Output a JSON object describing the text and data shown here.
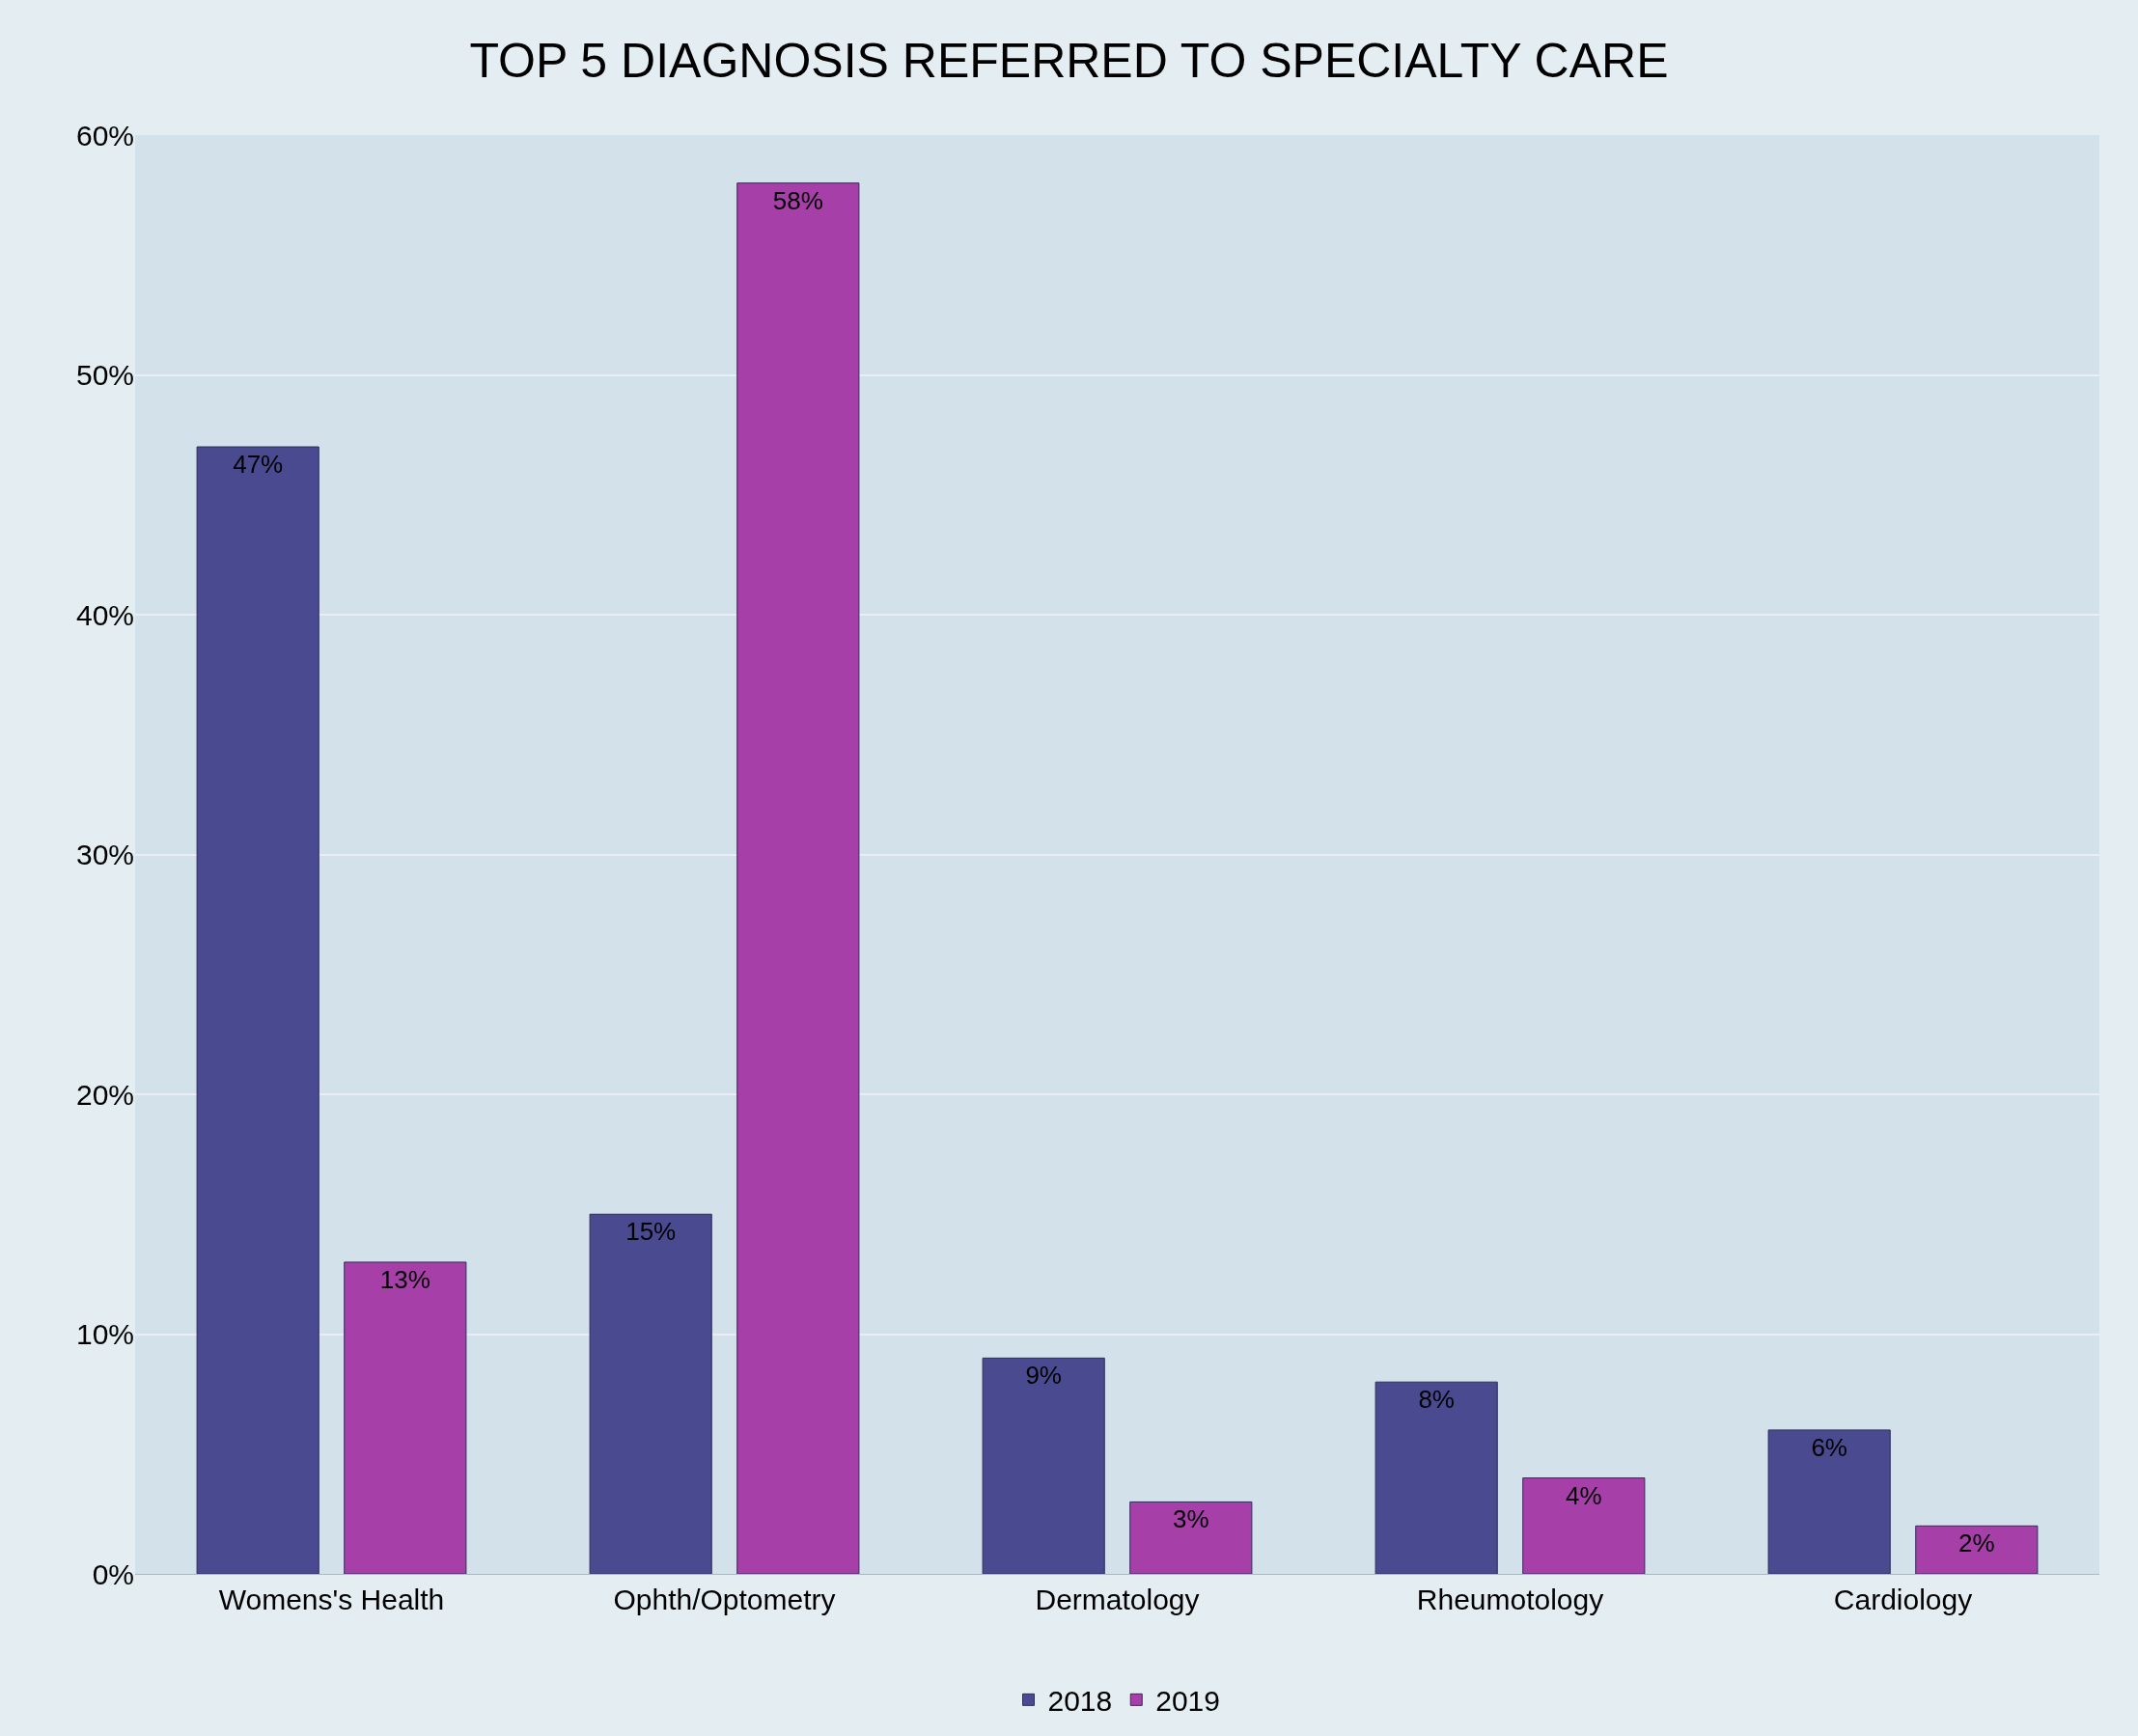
{
  "chart_data": {
    "type": "bar",
    "title": "TOP 5 DIAGNOSIS REFERRED TO SPECIALTY CARE",
    "categories": [
      "Womens's Health",
      "Ophth/Optometry",
      "Dermatology",
      "Rheumotology",
      "Cardiology"
    ],
    "series": [
      {
        "name": "2018",
        "color": "#4a4a90",
        "values": [
          47,
          15,
          9,
          8,
          6
        ],
        "value_labels": [
          "47%",
          "15%",
          "9%",
          "8%",
          "6%"
        ]
      },
      {
        "name": "2019",
        "color": "#a63fa8",
        "values": [
          13,
          58,
          3,
          4,
          2
        ],
        "value_labels": [
          "13%",
          "58%",
          "3%",
          "4%",
          "2%"
        ]
      }
    ],
    "ylim": [
      0,
      60
    ],
    "yticks": [
      {
        "value": 0,
        "label": "0%"
      },
      {
        "value": 10,
        "label": "10%"
      },
      {
        "value": 20,
        "label": "20%"
      },
      {
        "value": 30,
        "label": "30%"
      },
      {
        "value": 40,
        "label": "40%"
      },
      {
        "value": 50,
        "label": "50%"
      },
      {
        "value": 60,
        "label": "60%"
      }
    ],
    "grid": "y",
    "legend": "bottom"
  }
}
